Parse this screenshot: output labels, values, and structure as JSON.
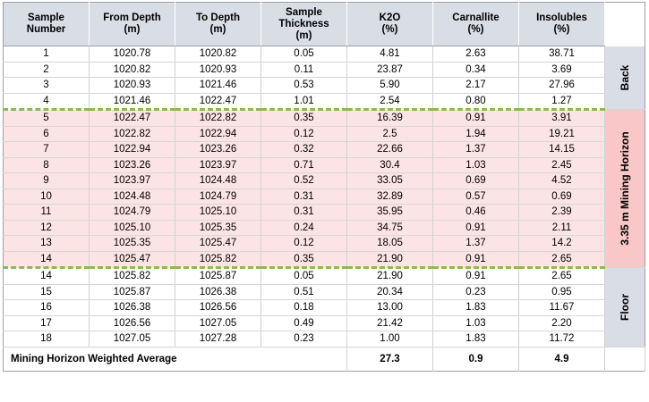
{
  "headers": {
    "sample_number": [
      "Sample",
      "Number"
    ],
    "from_depth": [
      "From Depth",
      "(m)"
    ],
    "to_depth": [
      "To Depth",
      "(m)"
    ],
    "thickness": [
      "Sample",
      "Thickness",
      "(m)"
    ],
    "k2o": [
      "K2O",
      "(%)"
    ],
    "carnallite": [
      "Carnallite",
      "(%)"
    ],
    "insolubles": [
      "Insolubles",
      "(%)"
    ]
  },
  "zones": {
    "back": "Back",
    "mining": "3.35 m Mining Horizon",
    "floor": "Floor"
  },
  "rows": [
    {
      "n": "1",
      "from": "1020.78",
      "to": "1020.82",
      "th": "0.05",
      "k2o": "4.81",
      "car": "2.63",
      "ins": "38.71"
    },
    {
      "n": "2",
      "from": "1020.82",
      "to": "1020.93",
      "th": "0.11",
      "k2o": "23.87",
      "car": "0.34",
      "ins": "3.69"
    },
    {
      "n": "3",
      "from": "1020.93",
      "to": "1021.46",
      "th": "0.53",
      "k2o": "5.90",
      "car": "2.17",
      "ins": "27.96"
    },
    {
      "n": "4",
      "from": "1021.46",
      "to": "1022.47",
      "th": "1.01",
      "k2o": "2.54",
      "car": "0.80",
      "ins": "1.27"
    },
    {
      "n": "5",
      "from": "1022.47",
      "to": "1022.82",
      "th": "0.35",
      "k2o": "16.39",
      "car": "0.91",
      "ins": "3.91"
    },
    {
      "n": "6",
      "from": "1022.82",
      "to": "1022.94",
      "th": "0.12",
      "k2o": "2.5",
      "car": "1.94",
      "ins": "19.21"
    },
    {
      "n": "7",
      "from": "1022.94",
      "to": "1023.26",
      "th": "0.32",
      "k2o": "22.66",
      "car": "1.37",
      "ins": "14.15"
    },
    {
      "n": "8",
      "from": "1023.26",
      "to": "1023.97",
      "th": "0.71",
      "k2o": "30.4",
      "car": "1.03",
      "ins": "2.45"
    },
    {
      "n": "9",
      "from": "1023.97",
      "to": "1024.48",
      "th": "0.52",
      "k2o": "33.05",
      "car": "0.69",
      "ins": "4.52"
    },
    {
      "n": "10",
      "from": "1024.48",
      "to": "1024.79",
      "th": "0.31",
      "k2o": "32.89",
      "car": "0.57",
      "ins": "0.69"
    },
    {
      "n": "11",
      "from": "1024.79",
      "to": "1025.10",
      "th": "0.31",
      "k2o": "35.95",
      "car": "0.46",
      "ins": "2.39"
    },
    {
      "n": "12",
      "from": "1025.10",
      "to": "1025.35",
      "th": "0.24",
      "k2o": "34.75",
      "car": "0.91",
      "ins": "2.11"
    },
    {
      "n": "13",
      "from": "1025.35",
      "to": "1025.47",
      "th": "0.12",
      "k2o": "18.05",
      "car": "1.37",
      "ins": "14.2"
    },
    {
      "n": "14",
      "from": "1025.47",
      "to": "1025.82",
      "th": "0.35",
      "k2o": "21.90",
      "car": "0.91",
      "ins": "2.65"
    },
    {
      "n": "14",
      "from": "1025.82",
      "to": "1025.87",
      "th": "0.05",
      "k2o": "21.90",
      "car": "0.91",
      "ins": "2.65"
    },
    {
      "n": "15",
      "from": "1025.87",
      "to": "1026.38",
      "th": "0.51",
      "k2o": "20.34",
      "car": "0.23",
      "ins": "0.95"
    },
    {
      "n": "16",
      "from": "1026.38",
      "to": "1026.56",
      "th": "0.18",
      "k2o": "13.00",
      "car": "1.83",
      "ins": "11.67"
    },
    {
      "n": "17",
      "from": "1026.56",
      "to": "1027.05",
      "th": "0.49",
      "k2o": "21.42",
      "car": "1.03",
      "ins": "2.20"
    },
    {
      "n": "18",
      "from": "1027.05",
      "to": "1027.28",
      "th": "0.23",
      "k2o": "1.00",
      "car": "1.83",
      "ins": "11.72"
    }
  ],
  "footer": {
    "label": "Mining Horizon Weighted Average",
    "k2o": "27.3",
    "carnallite": "0.9",
    "insolubles": "4.9"
  },
  "colors": {
    "header_bg": "#d9dde5",
    "mining_row_bg": "#fde4e4",
    "mining_label_bg": "#f9c7c7",
    "boundary_line": "#8db85a"
  }
}
